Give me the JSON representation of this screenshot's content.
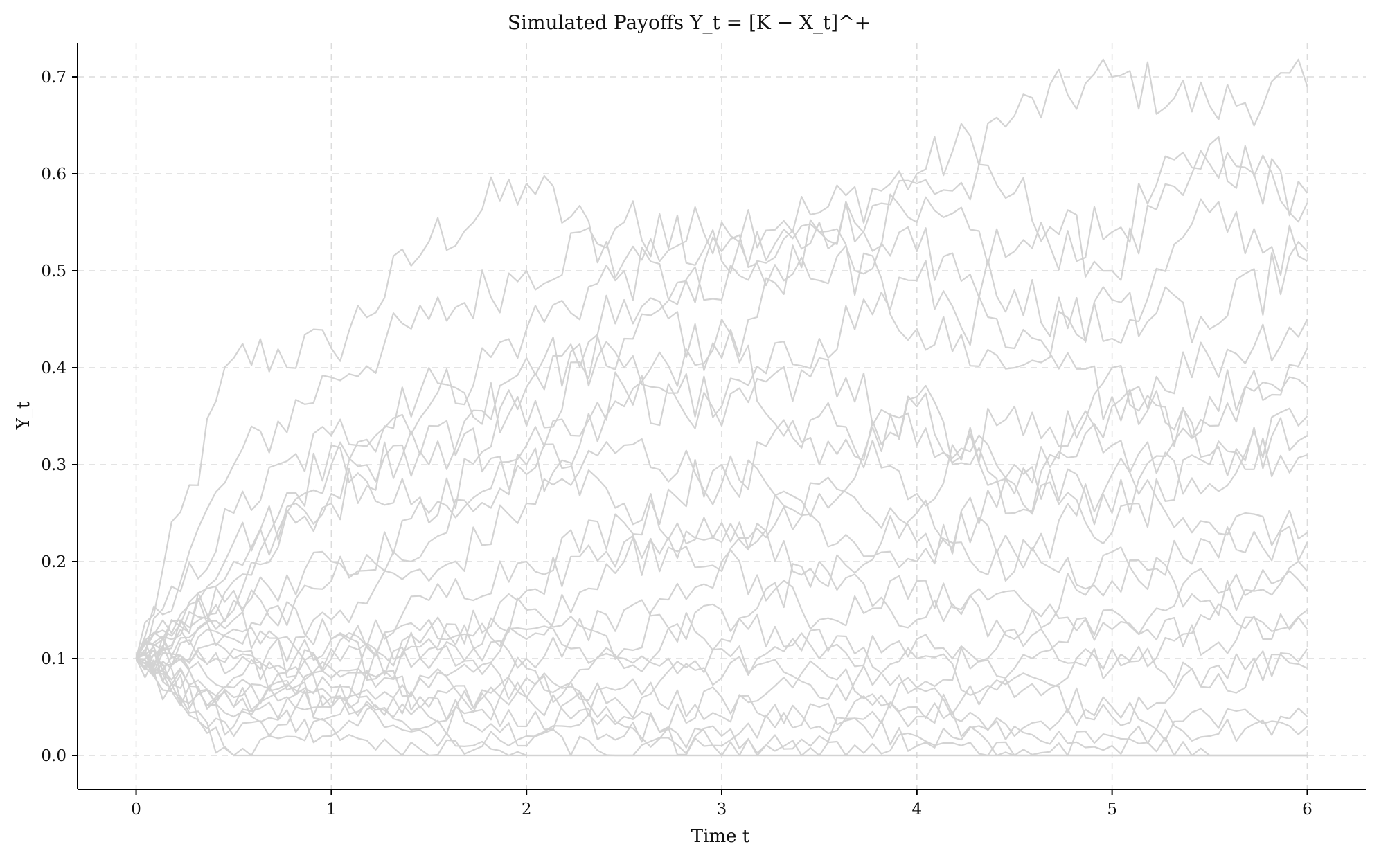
{
  "chart_data": {
    "type": "line",
    "title": "Simulated Payoffs Y_t = [K − X_t]^+",
    "xlabel": "Time t",
    "ylabel": "Y_t",
    "xlim": [
      -0.3,
      6.3
    ],
    "ylim": [
      -0.035,
      0.735
    ],
    "x_ticks": [
      0,
      1,
      2,
      3,
      4,
      5,
      6
    ],
    "x_tick_labels": [
      "0",
      "1",
      "2",
      "3",
      "4",
      "5",
      "6"
    ],
    "y_ticks": [
      0.0,
      0.1,
      0.2,
      0.3,
      0.4,
      0.5,
      0.6,
      0.7
    ],
    "y_tick_labels": [
      "0.0",
      "0.1",
      "0.2",
      "0.3",
      "0.4",
      "0.5",
      "0.6",
      "0.7"
    ],
    "grid": true,
    "line_color": "#d3d3d3",
    "x": [
      0,
      0.5,
      1,
      1.5,
      2,
      2.5,
      3,
      3.5,
      4,
      4.5,
      5,
      5.5,
      6
    ],
    "series": [
      {
        "values": [
          0.1,
          0.41,
          0.42,
          0.53,
          0.59,
          0.51,
          0.55,
          0.56,
          0.6,
          0.66,
          0.7,
          0.67,
          0.69
        ]
      },
      {
        "values": [
          0.1,
          0.3,
          0.39,
          0.45,
          0.5,
          0.55,
          0.51,
          0.54,
          0.59,
          0.58,
          0.5,
          0.61,
          0.58
        ]
      },
      {
        "values": [
          0.1,
          0.25,
          0.33,
          0.36,
          0.44,
          0.5,
          0.47,
          0.55,
          0.55,
          0.52,
          0.54,
          0.63,
          0.57
        ]
      },
      {
        "values": [
          0.1,
          0.22,
          0.27,
          0.4,
          0.34,
          0.43,
          0.52,
          0.49,
          0.52,
          0.48,
          0.43,
          0.56,
          0.51
        ]
      },
      {
        "values": [
          0.1,
          0.18,
          0.32,
          0.24,
          0.38,
          0.47,
          0.41,
          0.54,
          0.44,
          0.4,
          0.47,
          0.44,
          0.52
        ]
      },
      {
        "values": [
          0.1,
          0.15,
          0.3,
          0.3,
          0.41,
          0.4,
          0.36,
          0.43,
          0.49,
          0.42,
          0.37,
          0.41,
          0.45
        ]
      },
      {
        "values": [
          0.1,
          0.2,
          0.26,
          0.34,
          0.29,
          0.36,
          0.45,
          0.3,
          0.36,
          0.27,
          0.36,
          0.34,
          0.42
        ]
      },
      {
        "values": [
          0.1,
          0.12,
          0.18,
          0.25,
          0.32,
          0.38,
          0.34,
          0.41,
          0.32,
          0.3,
          0.25,
          0.37,
          0.38
        ]
      },
      {
        "values": [
          0.1,
          0.16,
          0.2,
          0.18,
          0.26,
          0.32,
          0.28,
          0.35,
          0.27,
          0.36,
          0.32,
          0.28,
          0.35
        ]
      },
      {
        "values": [
          0.1,
          0.08,
          0.14,
          0.22,
          0.3,
          0.26,
          0.22,
          0.27,
          0.37,
          0.25,
          0.4,
          0.31,
          0.33
        ]
      },
      {
        "values": [
          0.1,
          0.13,
          0.1,
          0.16,
          0.2,
          0.24,
          0.3,
          0.24,
          0.2,
          0.28,
          0.23,
          0.3,
          0.31
        ]
      },
      {
        "values": [
          0.1,
          0.06,
          0.12,
          0.11,
          0.17,
          0.22,
          0.19,
          0.28,
          0.22,
          0.19,
          0.29,
          0.24,
          0.23
        ]
      },
      {
        "values": [
          0.1,
          0.1,
          0.08,
          0.14,
          0.12,
          0.2,
          0.24,
          0.18,
          0.25,
          0.21,
          0.18,
          0.22,
          0.22
        ]
      },
      {
        "values": [
          0.1,
          0.05,
          0.11,
          0.09,
          0.15,
          0.11,
          0.2,
          0.14,
          0.18,
          0.12,
          0.21,
          0.16,
          0.19
        ]
      },
      {
        "values": [
          0.1,
          0.09,
          0.06,
          0.13,
          0.1,
          0.15,
          0.12,
          0.2,
          0.14,
          0.17,
          0.13,
          0.18,
          0.17
        ]
      },
      {
        "values": [
          0.1,
          0.04,
          0.09,
          0.07,
          0.13,
          0.09,
          0.15,
          0.1,
          0.12,
          0.09,
          0.15,
          0.11,
          0.15
        ]
      },
      {
        "values": [
          0.1,
          0.07,
          0.05,
          0.12,
          0.06,
          0.1,
          0.08,
          0.13,
          0.07,
          0.13,
          0.09,
          0.14,
          0.13
        ]
      },
      {
        "values": [
          0.1,
          0.03,
          0.07,
          0.04,
          0.09,
          0.05,
          0.11,
          0.06,
          0.1,
          0.06,
          0.11,
          0.07,
          0.11
        ]
      },
      {
        "values": [
          0.1,
          0.11,
          0.04,
          0.08,
          0.03,
          0.07,
          0.04,
          0.09,
          0.04,
          0.08,
          0.04,
          0.09,
          0.09
        ]
      },
      {
        "values": [
          0.1,
          0.02,
          0.05,
          0.03,
          0.06,
          0.02,
          0.06,
          0.03,
          0.07,
          0.02,
          0.05,
          0.02,
          0.04
        ]
      },
      {
        "values": [
          0.1,
          0.05,
          0.02,
          0.06,
          0.01,
          0.04,
          0.01,
          0.05,
          0.01,
          0.03,
          0.01,
          0.04,
          0.03
        ]
      },
      {
        "values": [
          0.1,
          0.0,
          0.03,
          0.0,
          0.02,
          0.0,
          0.02,
          0.0,
          0.02,
          0.0,
          0.02,
          0.0,
          0.0
        ]
      },
      {
        "values": [
          0.1,
          0.0,
          0.0,
          0.0,
          0.0,
          0.0,
          0.0,
          0.0,
          0.0,
          0.0,
          0.0,
          0.0,
          0.0
        ]
      },
      {
        "values": [
          0.1,
          0.14,
          0.06,
          0.02,
          0.0,
          0.0,
          0.0,
          0.0,
          0.0,
          0.0,
          0.0,
          0.0,
          0.0
        ]
      },
      {
        "values": [
          0.1,
          0.17,
          0.12,
          0.05,
          0.08,
          0.03,
          0.0,
          0.02,
          0.05,
          0.0,
          0.0,
          0.0,
          0.0
        ]
      }
    ]
  }
}
